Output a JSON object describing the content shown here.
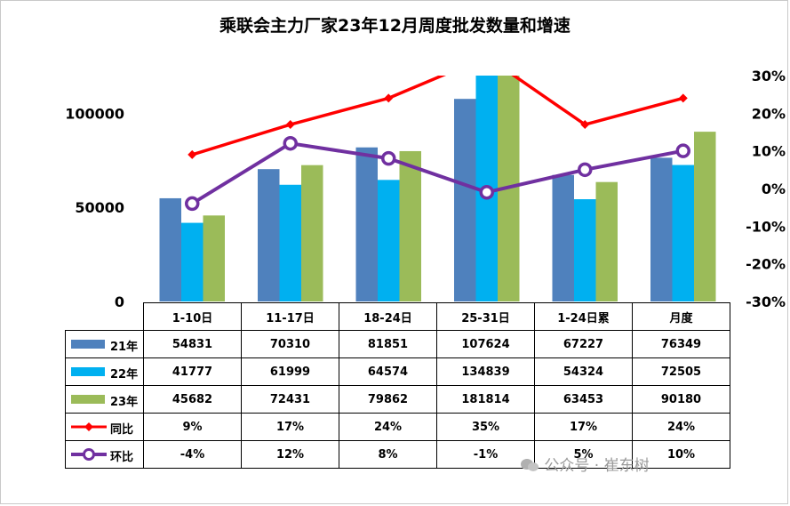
{
  "chart_data": {
    "type": "bar+line",
    "title": "乘联会主力厂家23年12月周度批发数量和增速",
    "categories": [
      "1-10日",
      "11-17日",
      "18-24日",
      "25-31日",
      "1-24日累",
      "月度"
    ],
    "left_axis": {
      "ticks": [
        "0",
        "50000",
        "100000"
      ],
      "ylim": [
        0,
        120000
      ]
    },
    "right_axis": {
      "ticks": [
        "-30%",
        "-20%",
        "-10%",
        "0%",
        "10%",
        "20%",
        "30%"
      ],
      "ylim": [
        -30,
        30
      ]
    },
    "bar_series": [
      {
        "name": "21年",
        "color": "#4f81bd",
        "values": [
          54831,
          70310,
          81851,
          107624,
          67227,
          76349
        ],
        "labels": [
          "54831",
          "70310",
          "81851",
          "107624",
          "67227",
          "76349"
        ]
      },
      {
        "name": "22年",
        "color": "#00b0f0",
        "values": [
          41777,
          61999,
          64574,
          134839,
          54324,
          72505
        ],
        "labels": [
          "41777",
          "61999",
          "64574",
          "134839",
          "54324",
          "72505"
        ]
      },
      {
        "name": "23年",
        "color": "#9bbb59",
        "values": [
          45682,
          72431,
          79862,
          181814,
          63453,
          90180
        ],
        "labels": [
          "45682",
          "72431",
          "79862",
          "181814",
          "63453",
          "90180"
        ]
      }
    ],
    "line_series": [
      {
        "name": "同比",
        "color": "#ff0000",
        "marker": "diamond",
        "values": [
          9,
          17,
          24,
          35,
          17,
          24
        ],
        "labels": [
          "9%",
          "17%",
          "24%",
          "35%",
          "17%",
          "24%"
        ]
      },
      {
        "name": "环比",
        "color": "#7030a0",
        "marker": "circle",
        "values": [
          -4,
          12,
          8,
          -1,
          5,
          10
        ],
        "labels": [
          "-4%",
          "12%",
          "8%",
          "-1%",
          "5%",
          "10%"
        ]
      }
    ],
    "grid": false,
    "legend": "data-table"
  },
  "watermark": "公众号 · 崔东树"
}
